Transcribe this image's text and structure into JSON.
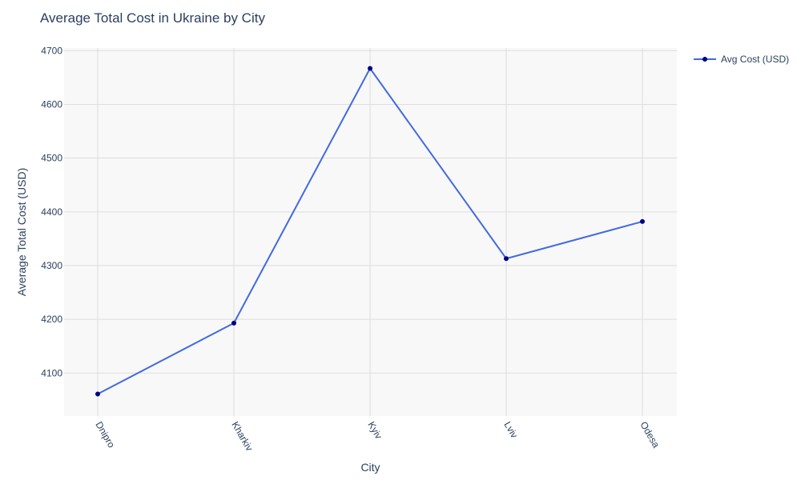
{
  "chart_data": {
    "type": "line",
    "title": "Average Total Cost in Ukraine by City",
    "xlabel": "City",
    "ylabel": "Average Total Cost (USD)",
    "categories": [
      "Dnipro",
      "Kharkiv",
      "Kyiv",
      "Lviv",
      "Odesa"
    ],
    "series": [
      {
        "name": "Avg Cost (USD)",
        "values": [
          4061,
          4193,
          4667,
          4313,
          4382
        ],
        "line_color": "#4169e1",
        "marker_color": "#000080"
      }
    ],
    "ylim": [
      4020,
      4705
    ],
    "yticks": [
      4100,
      4200,
      4300,
      4400,
      4500,
      4600,
      4700
    ],
    "grid": true,
    "legend_position": "top-right",
    "plot_bgcolor": "#f8f8f8",
    "grid_color": "#dddddd"
  }
}
